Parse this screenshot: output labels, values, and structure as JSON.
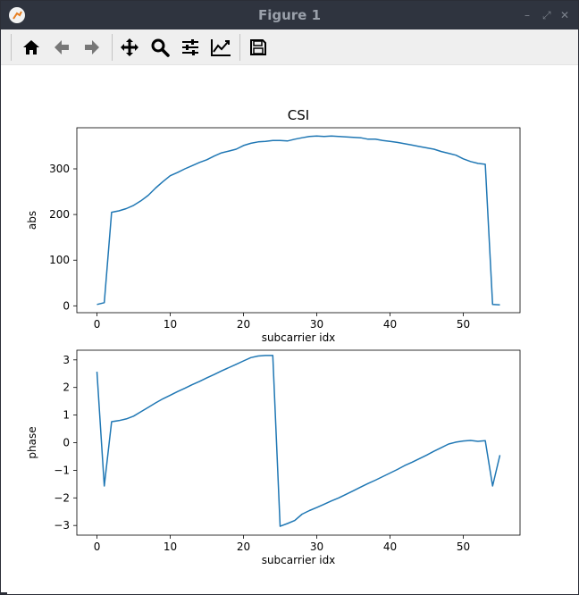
{
  "window": {
    "title": "Figure 1"
  },
  "toolbar": {
    "buttons": [
      {
        "id": "home",
        "icon": "home-icon"
      },
      {
        "id": "back",
        "icon": "arrow-left-icon"
      },
      {
        "id": "forward",
        "icon": "arrow-right-icon"
      },
      {
        "id": "pan",
        "icon": "move-icon"
      },
      {
        "id": "zoom",
        "icon": "magnifier-icon"
      },
      {
        "id": "subplots",
        "icon": "sliders-icon"
      },
      {
        "id": "axes",
        "icon": "line-chart-icon"
      },
      {
        "id": "save",
        "icon": "floppy-disk-icon"
      }
    ]
  },
  "chart_data": [
    {
      "type": "line",
      "title": "CSI",
      "xlabel": "subcarrier idx",
      "ylabel": "abs",
      "xlim": [
        -2.75,
        57.75
      ],
      "ylim": [
        -15,
        390
      ],
      "xticks": [
        0,
        10,
        20,
        30,
        40,
        50
      ],
      "yticks": [
        0,
        100,
        200,
        300
      ],
      "color": "#1f77b4",
      "x": [
        0,
        1,
        2,
        3,
        4,
        5,
        6,
        7,
        8,
        9,
        10,
        11,
        12,
        13,
        14,
        15,
        16,
        17,
        18,
        19,
        20,
        21,
        22,
        23,
        24,
        25,
        26,
        27,
        28,
        29,
        30,
        31,
        32,
        33,
        34,
        35,
        36,
        37,
        38,
        39,
        40,
        41,
        42,
        43,
        44,
        45,
        46,
        47,
        48,
        49,
        50,
        51,
        52,
        53,
        54,
        55
      ],
      "y": [
        3,
        7,
        205,
        208,
        213,
        220,
        230,
        242,
        258,
        272,
        285,
        292,
        300,
        307,
        314,
        320,
        328,
        335,
        339,
        343,
        351,
        356,
        359,
        360,
        362,
        362,
        361,
        365,
        368,
        371,
        372,
        371,
        372,
        371,
        370,
        369,
        368,
        365,
        365,
        362,
        360,
        358,
        355,
        352,
        349,
        346,
        343,
        338,
        334,
        330,
        322,
        316,
        312,
        310,
        3,
        2
      ]
    },
    {
      "type": "line",
      "title": "",
      "xlabel": "subcarrier idx",
      "ylabel": "phase",
      "xlim": [
        -2.75,
        57.75
      ],
      "ylim": [
        -3.35,
        3.35
      ],
      "xticks": [
        0,
        10,
        20,
        30,
        40,
        50
      ],
      "yticks": [
        -3,
        -2,
        -1,
        0,
        1,
        2,
        3
      ],
      "color": "#1f77b4",
      "x": [
        0,
        1,
        2,
        3,
        4,
        5,
        6,
        7,
        8,
        9,
        10,
        11,
        12,
        13,
        14,
        15,
        16,
        17,
        18,
        19,
        20,
        21,
        22,
        23,
        24,
        25,
        26,
        27,
        28,
        29,
        30,
        31,
        32,
        33,
        34,
        35,
        36,
        37,
        38,
        39,
        40,
        41,
        42,
        43,
        44,
        45,
        46,
        47,
        48,
        49,
        50,
        51,
        52,
        53,
        54,
        55
      ],
      "y": [
        2.57,
        -1.57,
        0.76,
        0.8,
        0.86,
        0.96,
        1.12,
        1.28,
        1.44,
        1.59,
        1.72,
        1.85,
        1.97,
        2.1,
        2.22,
        2.35,
        2.47,
        2.6,
        2.72,
        2.84,
        2.96,
        3.08,
        3.14,
        3.16,
        3.16,
        -3.03,
        -2.93,
        -2.82,
        -2.59,
        -2.46,
        -2.35,
        -2.23,
        -2.11,
        -2.0,
        -1.87,
        -1.74,
        -1.61,
        -1.48,
        -1.36,
        -1.23,
        -1.1,
        -0.97,
        -0.83,
        -0.71,
        -0.58,
        -0.45,
        -0.31,
        -0.18,
        -0.05,
        0.02,
        0.06,
        0.08,
        0.05,
        0.07,
        -1.57,
        -0.45
      ]
    }
  ]
}
